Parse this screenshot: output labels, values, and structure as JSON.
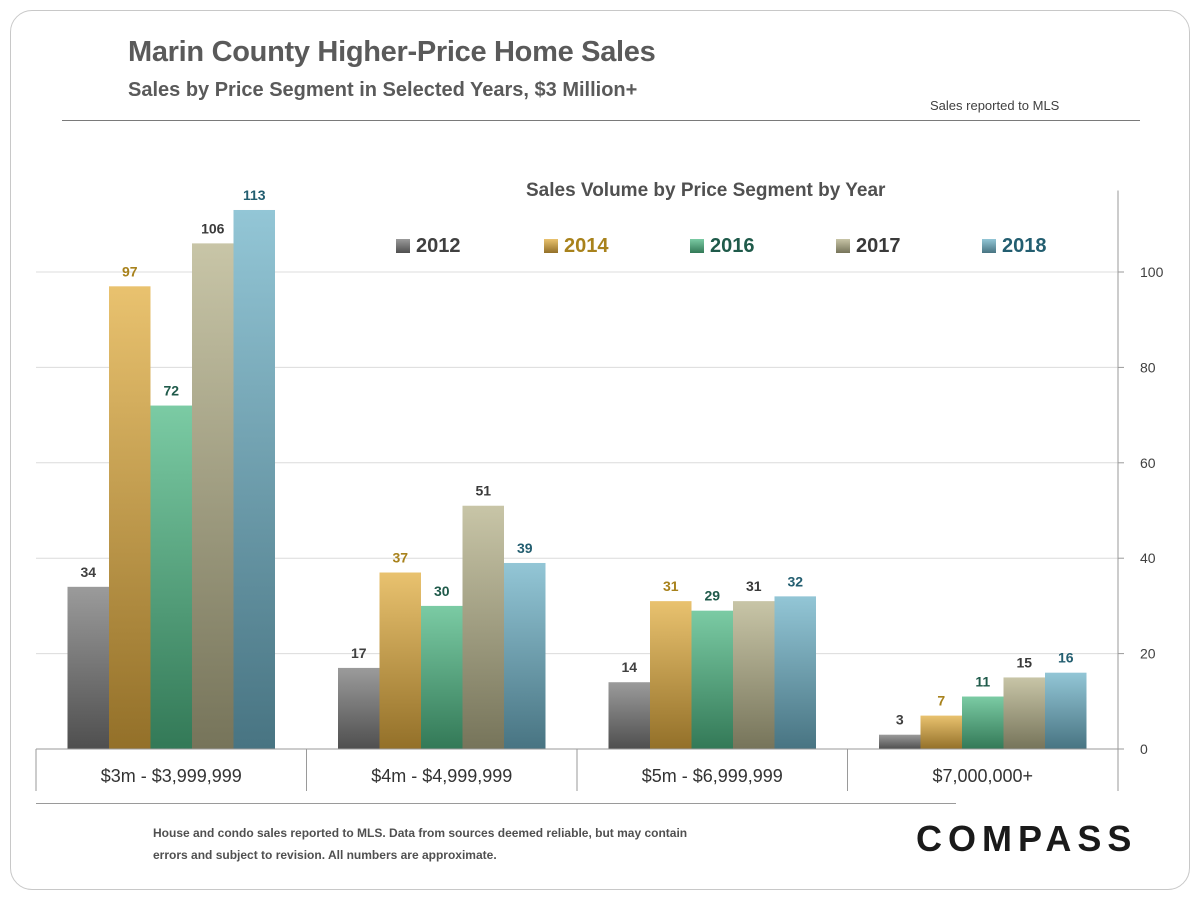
{
  "header": {
    "title": "Marin County Higher-Price Home Sales",
    "subtitle": "Sales by Price Segment in Selected Years, $3 Million+",
    "source_note": "Sales reported to MLS"
  },
  "footer": {
    "note_line1": "House and condo sales reported to MLS. Data from sources deemed reliable, but may contain",
    "note_line2": "errors and subject to revision.  All numbers are approximate.",
    "logo": "COMPASS"
  },
  "chart_data": {
    "type": "bar",
    "title": "Sales Volume by Price Segment by Year",
    "categories": [
      "$3m - $3,999,999",
      "$4m - $4,999,999",
      "$5m - $6,999,999",
      "$7,000,000+"
    ],
    "series": [
      {
        "name": "2012",
        "values": [
          34,
          17,
          14,
          3
        ],
        "color": "#7a7a7a",
        "label_color": "#404040"
      },
      {
        "name": "2014",
        "values": [
          97,
          37,
          31,
          7
        ],
        "color": "#e2ad3f",
        "label_color": "#a8821c"
      },
      {
        "name": "2016",
        "values": [
          72,
          30,
          29,
          11
        ],
        "color": "#4fba86",
        "label_color": "#1f5a4a"
      },
      {
        "name": "2017",
        "values": [
          106,
          51,
          31,
          15
        ],
        "color": "#b6b28a",
        "label_color": "#3a3a3a"
      },
      {
        "name": "2018",
        "values": [
          113,
          39,
          32,
          16
        ],
        "color": "#6fb3c8",
        "label_color": "#235e70"
      }
    ],
    "y_axis": {
      "position": "right",
      "ylim": [
        0,
        115
      ],
      "ticks": [
        0,
        20,
        40,
        60,
        80,
        100
      ]
    },
    "grid": true,
    "legend": "top"
  }
}
